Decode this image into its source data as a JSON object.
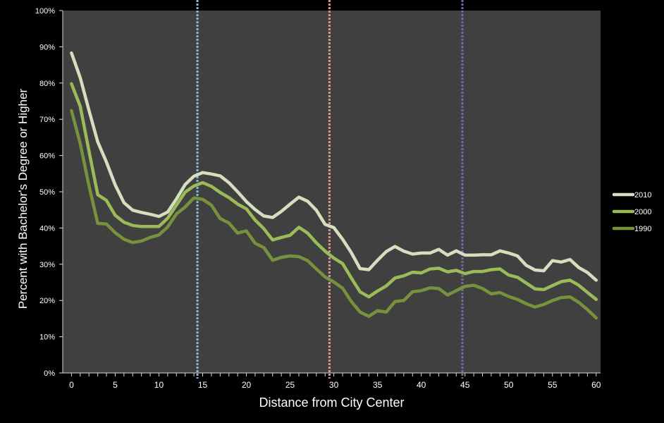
{
  "chart_data": {
    "type": "line",
    "title": "",
    "xlabel": "Distance from City Center",
    "ylabel": "Percent with Bachelor's Degree or Higher",
    "xlim": [
      -1,
      60.5
    ],
    "ylim": [
      0,
      100
    ],
    "x_ticks": [
      0,
      5,
      10,
      15,
      20,
      25,
      30,
      35,
      40,
      45,
      50,
      55,
      60
    ],
    "y_ticks": [
      0,
      10,
      20,
      30,
      40,
      50,
      60,
      70,
      80,
      90,
      100
    ],
    "x_tick_labels": [
      "0",
      "5",
      "10",
      "15",
      "20",
      "25",
      "30",
      "35",
      "40",
      "45",
      "50",
      "55",
      "60"
    ],
    "y_tick_labels": [
      "0%",
      "10%",
      "20%",
      "30%",
      "40%",
      "50%",
      "60%",
      "70%",
      "80%",
      "90%",
      "100%"
    ],
    "grid": false,
    "legend_position": "right",
    "plot_background": "#404040",
    "x": [
      0,
      1,
      2,
      3,
      4,
      5,
      6,
      7,
      8,
      9,
      10,
      11,
      12,
      13,
      14,
      15,
      16,
      17,
      18,
      19,
      20,
      21,
      22,
      23,
      24,
      25,
      26,
      27,
      28,
      29,
      30,
      31,
      32,
      33,
      34,
      35,
      36,
      37,
      38,
      39,
      40,
      41,
      42,
      43,
      44,
      45,
      46,
      47,
      48,
      49,
      50,
      51,
      52,
      53,
      54,
      55,
      56,
      57,
      58,
      59,
      60
    ],
    "series": [
      {
        "name": "2010",
        "color": "#d4dfc0",
        "values": [
          88.3,
          81.5,
          72.5,
          63.8,
          58.2,
          51.9,
          47,
          44.9,
          44.3,
          43.8,
          43.2,
          44.4,
          48,
          52,
          54.3,
          55.3,
          54.9,
          54.4,
          52.5,
          50,
          47.3,
          45.1,
          43.3,
          42.9,
          44.6,
          46.6,
          48.5,
          47.4,
          44.9,
          41,
          40.1,
          36.9,
          33.2,
          28.8,
          28.5,
          31.1,
          33.5,
          34.9,
          33.6,
          32.8,
          33.1,
          33.1,
          34.1,
          32.5,
          33.7,
          32.5,
          32.5,
          32.6,
          32.6,
          33.7,
          33.1,
          32.3,
          29.7,
          28.4,
          28.2,
          31,
          30.6,
          31.3,
          29.1,
          27.7,
          25.6
        ]
      },
      {
        "name": "2000",
        "color": "#9bbb59",
        "values": [
          79.8,
          73.6,
          61.3,
          49.2,
          47.6,
          43.5,
          41.6,
          40.7,
          40.4,
          40.4,
          40.4,
          42.7,
          46.3,
          49.9,
          51.6,
          52.5,
          51.5,
          49.8,
          48.4,
          46.6,
          45.3,
          42.2,
          39.8,
          36.7,
          37.4,
          38,
          40.2,
          38.6,
          35.9,
          33.6,
          31.7,
          30.2,
          26.2,
          22.4,
          21,
          22.6,
          24,
          26.2,
          26.8,
          27.8,
          27.6,
          28.7,
          28.9,
          27.9,
          28.3,
          27.4,
          28,
          28,
          28.5,
          28.7,
          27,
          26.4,
          24.8,
          23.2,
          23,
          24.1,
          25.2,
          25.6,
          24.2,
          22.2,
          20.3
        ]
      },
      {
        "name": "1990",
        "color": "#76923c",
        "values": [
          72.4,
          63.3,
          51.7,
          41.3,
          41.1,
          38.7,
          36.9,
          36,
          36.4,
          37.4,
          38.1,
          40.3,
          43.9,
          45.8,
          48.3,
          47.9,
          46.3,
          42.6,
          41.4,
          38.6,
          39.2,
          35.8,
          34.6,
          31.1,
          31.9,
          32.3,
          32.1,
          31,
          28.7,
          26.5,
          25.1,
          23.4,
          19.7,
          16.8,
          15.6,
          17.2,
          16.8,
          19.7,
          20,
          22.4,
          22.7,
          23.5,
          23.3,
          21.5,
          22.7,
          23.9,
          24.2,
          23.3,
          21.8,
          22.2,
          21.1,
          20.3,
          19.1,
          18.2,
          18.9,
          20,
          20.8,
          21,
          19.5,
          17.5,
          15.2
        ]
      }
    ],
    "reference_lines": [
      {
        "x": 14.4,
        "color": "#8db3e2",
        "style": "dotted"
      },
      {
        "x": 29.5,
        "color": "#d99694",
        "style": "dotted"
      },
      {
        "x": 44.7,
        "color": "#8064a2",
        "style": "dotted"
      }
    ]
  }
}
